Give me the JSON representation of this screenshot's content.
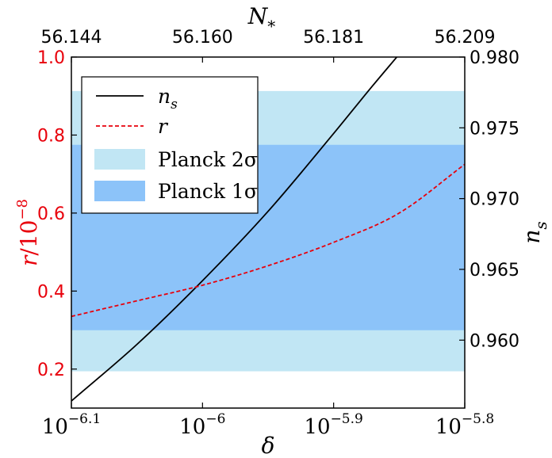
{
  "chart_data": {
    "type": "line",
    "title": "",
    "x_axis": {
      "label": "δ",
      "scale": "log10",
      "range_log10": [
        -6.1,
        -5.8
      ],
      "ticks_log10": [
        -6.1,
        -6.0,
        -5.9,
        -5.8
      ],
      "tick_labels": [
        {
          "base": "10",
          "exp": "−6.1"
        },
        {
          "base": "10",
          "exp": "−6"
        },
        {
          "base": "10",
          "exp": "−5.9"
        },
        {
          "base": "10",
          "exp": "−5.8"
        }
      ]
    },
    "top_axis": {
      "label": "N",
      "label_subscript": "*",
      "tick_labels": [
        "56.144",
        "56.160",
        "56.181",
        "56.209"
      ],
      "color": "#000000"
    },
    "left_axis": {
      "label": "r/10",
      "label_exp": "−8",
      "range": [
        0.1,
        1.0
      ],
      "ticks": [
        0.2,
        0.4,
        0.6,
        0.8,
        1.0
      ],
      "tick_labels": [
        "0.2",
        "0.4",
        "0.6",
        "0.8",
        "1.0"
      ],
      "color": "#e8000b"
    },
    "right_axis": {
      "label": "n",
      "label_subscript": "s",
      "range": [
        0.9552,
        0.98
      ],
      "ticks": [
        0.96,
        0.965,
        0.97,
        0.975,
        0.98
      ],
      "tick_labels": [
        "0.960",
        "0.965",
        "0.970",
        "0.975",
        "0.980"
      ],
      "color": "#000000"
    },
    "bands": [
      {
        "name": "Planck 2σ",
        "axis": "right",
        "range": [
          0.9578,
          0.9776
        ],
        "color": "#c1e6f4"
      },
      {
        "name": "Planck 1σ",
        "axis": "right",
        "range": [
          0.9607,
          0.9738
        ],
        "color": "#8cc3f9"
      }
    ],
    "series": [
      {
        "name": "n_s",
        "axis": "right",
        "color": "#000000",
        "style": "solid",
        "x_log10": [
          -6.1,
          -6.05,
          -6.0,
          -5.95,
          -5.9,
          -5.87,
          -5.85
        ],
        "y": [
          0.9557,
          0.9597,
          0.9642,
          0.9691,
          0.9746,
          0.978,
          0.9802
        ]
      },
      {
        "name": "r",
        "axis": "left",
        "color": "#e8000b",
        "style": "dashed",
        "x_log10": [
          -6.1,
          -6.05,
          -6.0,
          -5.95,
          -5.9,
          -5.85,
          -5.8
        ],
        "y": [
          0.335,
          0.375,
          0.415,
          0.465,
          0.525,
          0.6,
          0.725
        ]
      }
    ],
    "legend": {
      "placement": "top-left",
      "entries": [
        {
          "label_main": "n",
          "label_sub": "s",
          "kind": "line",
          "color": "#000000",
          "style": "solid"
        },
        {
          "label_main": "r",
          "label_sub": "",
          "kind": "line",
          "color": "#e8000b",
          "style": "dashed"
        },
        {
          "label_main": "Planck 2σ",
          "label_sub": "",
          "kind": "patch",
          "color": "#c1e6f4"
        },
        {
          "label_main": "Planck 1σ",
          "label_sub": "",
          "kind": "patch",
          "color": "#8cc3f9"
        }
      ]
    },
    "grid": false
  }
}
